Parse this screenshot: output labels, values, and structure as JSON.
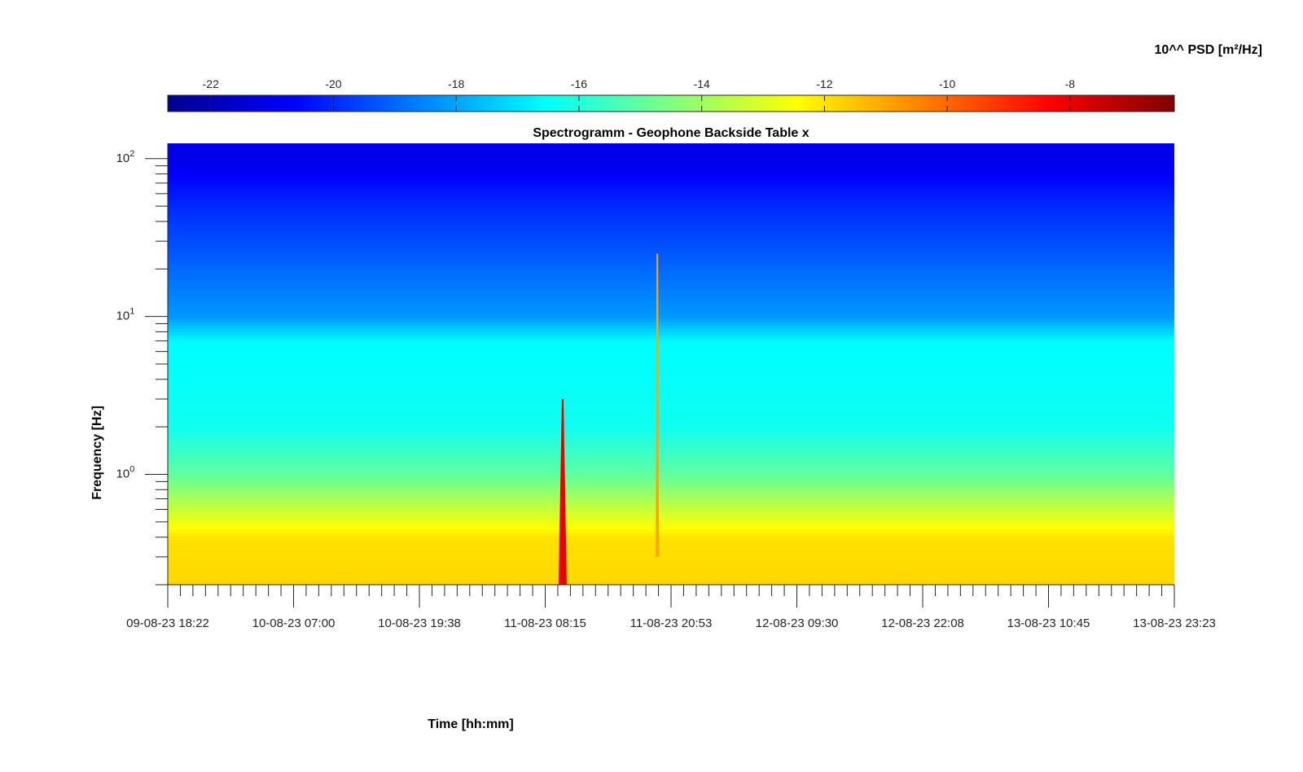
{
  "chart_data": {
    "type": "heatmap",
    "title": "Spectrogramm - Geophone Backside Table x",
    "xlabel": "Time [hh:mm]",
    "ylabel": "Frequency [Hz]",
    "y_scale": "log",
    "ylim_hz": [
      0.2,
      125
    ],
    "y_tick_values": [
      1,
      10,
      100
    ],
    "y_tick_labels": [
      {
        "base": "10",
        "exp": "0"
      },
      {
        "base": "10",
        "exp": "1"
      },
      {
        "base": "10",
        "exp": "2"
      }
    ],
    "x_tick_labels": [
      "09-08-23 18:22",
      "10-08-23 07:00",
      "10-08-23 19:38",
      "11-08-23 08:15",
      "11-08-23 20:53",
      "12-08-23 09:30",
      "12-08-23 22:08",
      "13-08-23 10:45",
      "13-08-23 23:23"
    ],
    "colorbar": {
      "label": "10^^ PSD [m²/Hz]",
      "location": "top",
      "colormap": "jet",
      "range": [
        -22.7,
        -6.3
      ],
      "tick_values": [
        -22,
        -20,
        -18,
        -16,
        -14,
        -12,
        -10,
        -8
      ],
      "tick_labels": [
        "-22",
        "-20",
        "-18",
        "-16",
        "-14",
        "-12",
        "-10",
        "-8"
      ]
    },
    "approximate_psd_profile": [
      {
        "frequency_hz": 100,
        "log10_psd": -21.0
      },
      {
        "frequency_hz": 50,
        "log10_psd": -20.0
      },
      {
        "frequency_hz": 10,
        "log10_psd": -18.2
      },
      {
        "frequency_hz": 7,
        "log10_psd": -16.6
      },
      {
        "frequency_hz": 2,
        "log10_psd": -16.3
      },
      {
        "frequency_hz": 1,
        "log10_psd": -15.0
      },
      {
        "frequency_hz": 0.4,
        "log10_psd": -12.0
      },
      {
        "frequency_hz": 0.2,
        "log10_psd": -11.8
      }
    ],
    "notable_events": [
      {
        "time": "11-08-23 ~10:00",
        "frequency_hz_range": [
          0.2,
          3
        ],
        "log10_psd": -8
      },
      {
        "time": "11-08-23 ~19:30",
        "frequency_hz_range": [
          0.3,
          25
        ],
        "log10_psd": -11
      }
    ]
  }
}
